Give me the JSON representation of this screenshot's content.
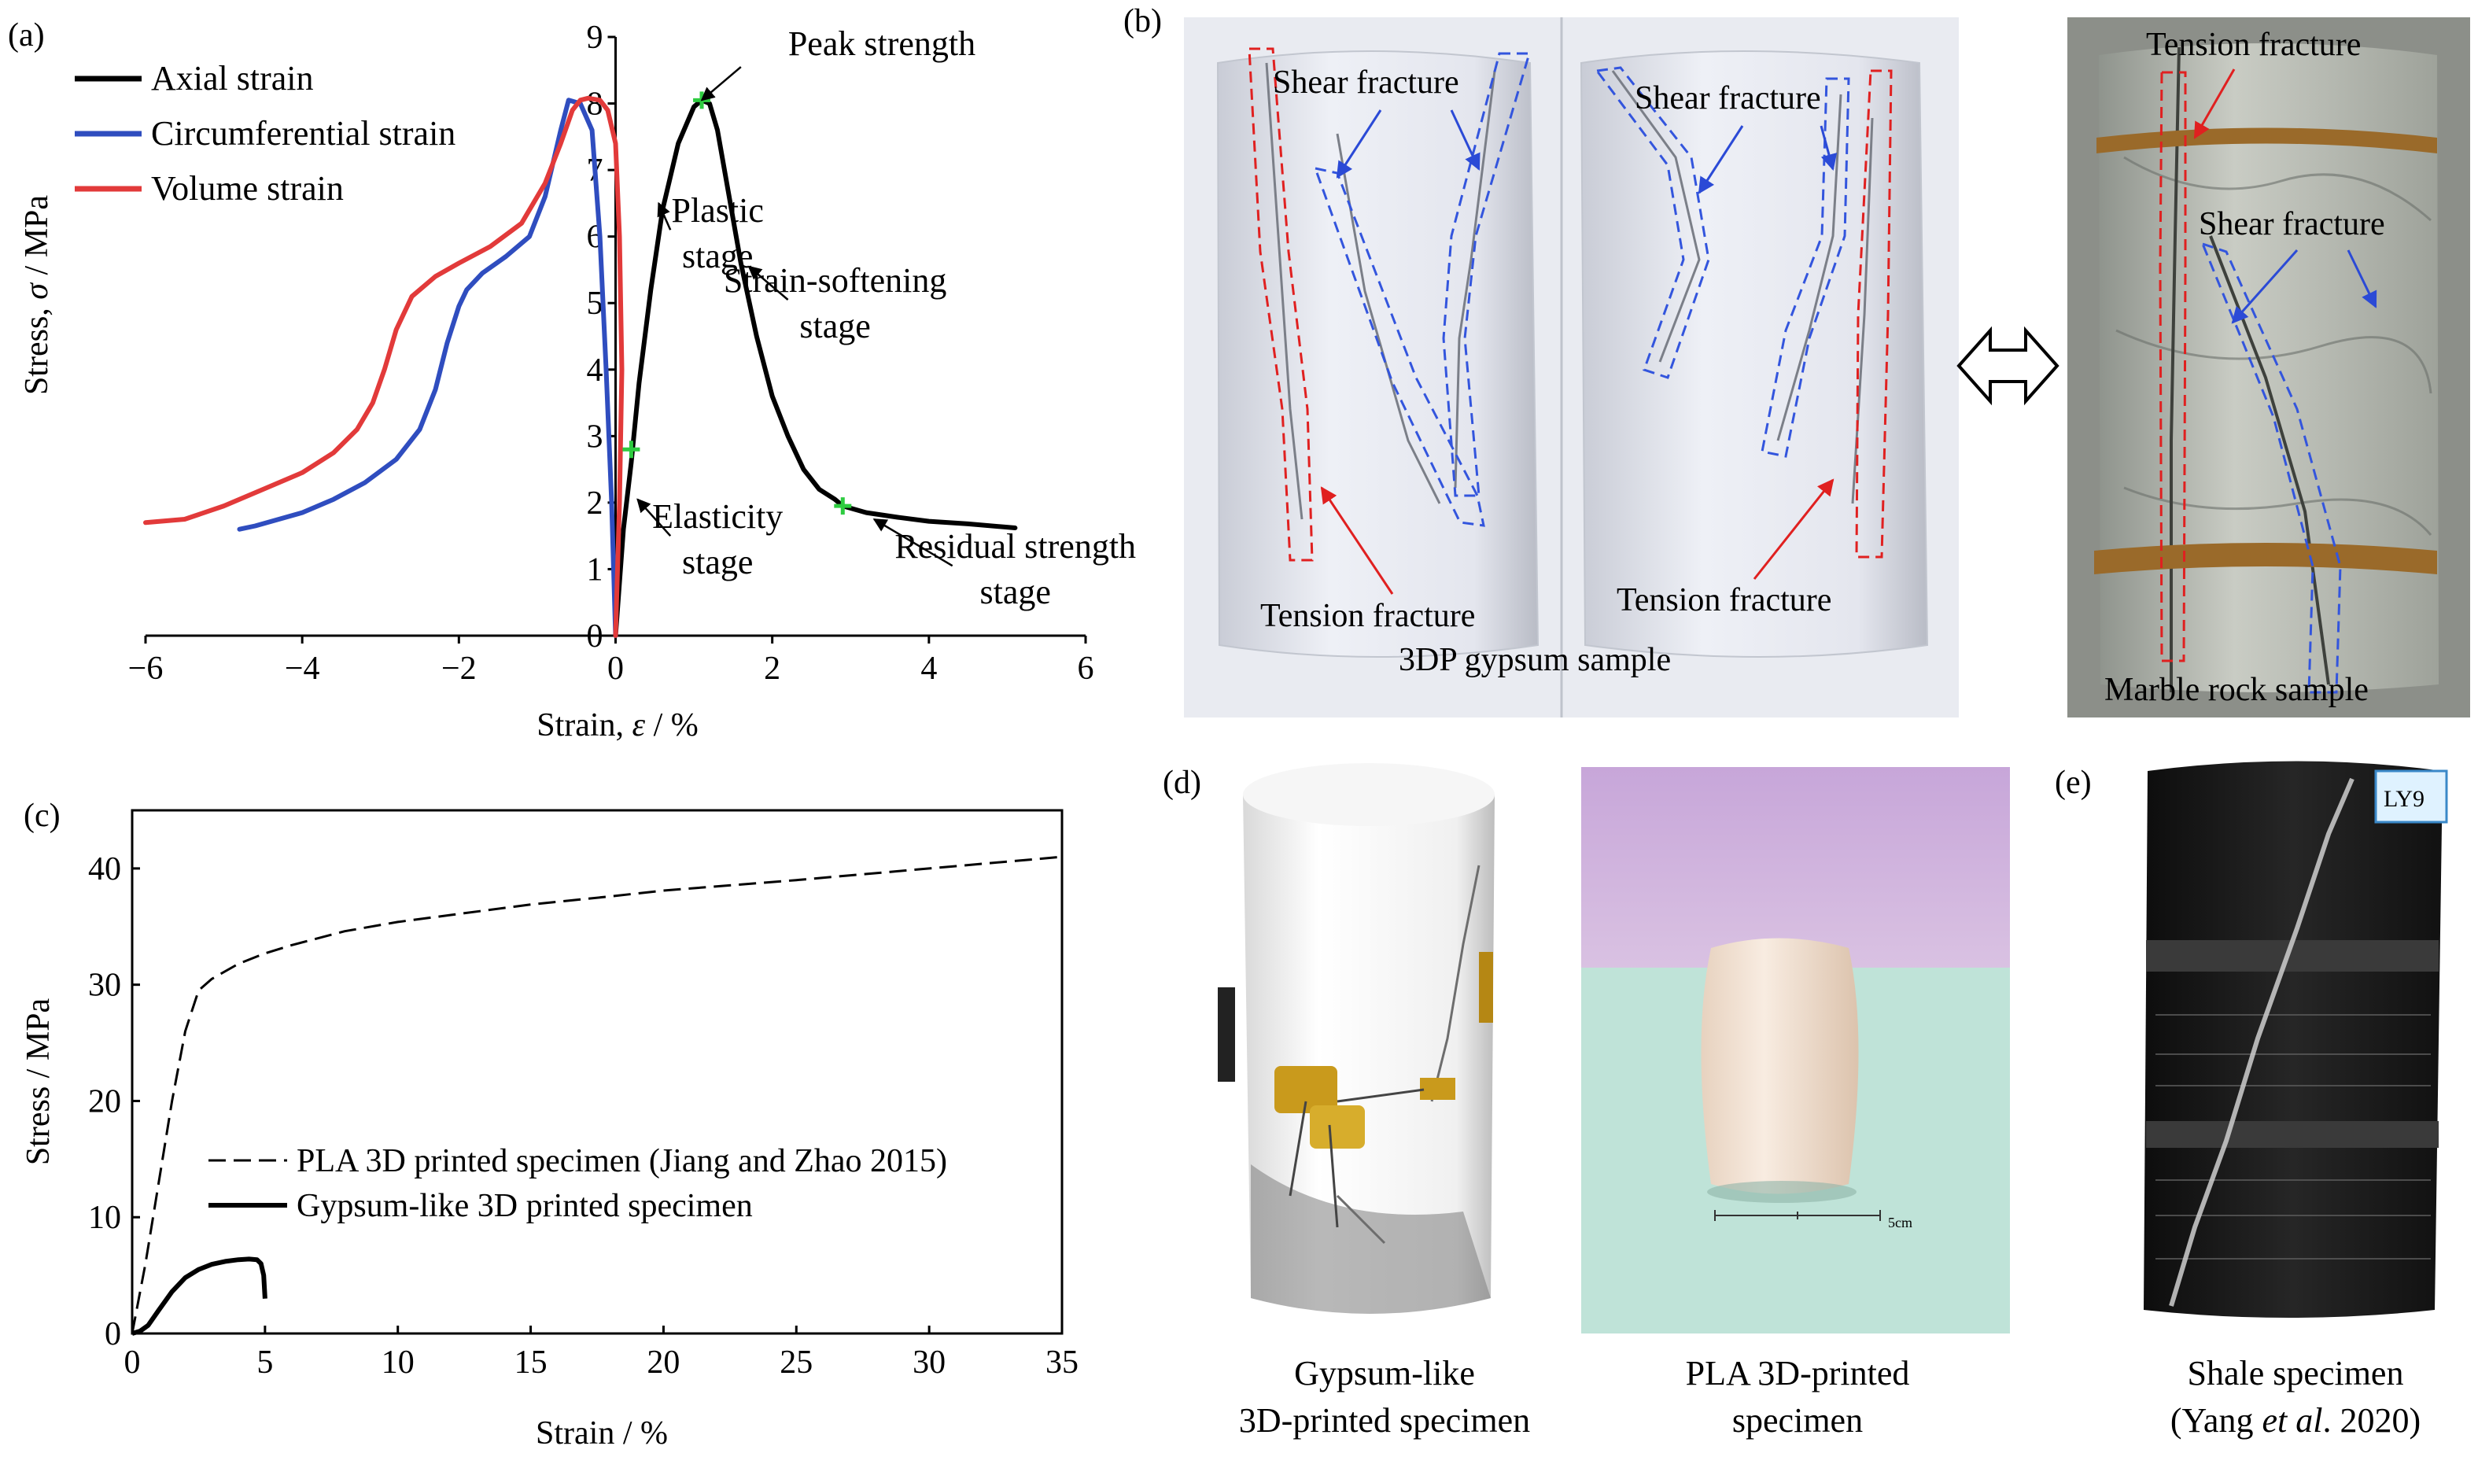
{
  "panels": {
    "a": {
      "label": "(a)"
    },
    "b": {
      "label": "(b)"
    },
    "c": {
      "label": "(c)"
    },
    "d": {
      "label": "(d)"
    },
    "e": {
      "label": "(e)"
    }
  },
  "colors": {
    "axial": "#000000",
    "circumferential": "#2f4dbf",
    "volume": "#e23a3a",
    "marker": "#2ecc40",
    "shear_outline": "#3355dd",
    "tension_outline": "#e02020",
    "gypsum_bg": "#e6e8ef",
    "marble_bg": "#b7bbb4",
    "pla_wall": "#c8a7d8",
    "pla_table": "#bfe3d8",
    "pla_body": "#f2e3d6",
    "shale_body": "#1a1a1a",
    "rubber_band": "#9a6a2a"
  },
  "photo_b": {
    "shear_fracture_1": "Shear fracture",
    "shear_fracture_2": "Shear fracture",
    "tension_fracture_1": "Tension fracture",
    "tension_fracture_2": "Tension fracture",
    "gypsum_caption": "3DP gypsum sample",
    "marble_tension": "Tension fracture",
    "marble_shear": "Shear fracture",
    "marble_caption": "Marble rock sample",
    "double_arrow_icon": "double-arrow-icon"
  },
  "photo_d": {
    "gypsum_caption_1": "Gypsum-like",
    "gypsum_caption_2": "3D-printed specimen",
    "pla_caption_1": "PLA 3D-printed",
    "pla_caption_2": "specimen",
    "scale_label": "5cm"
  },
  "photo_e": {
    "caption_1": "Shale specimen",
    "caption_2_pre": "(Yang ",
    "caption_2_it": "et al",
    "caption_2_post": ". 2020)",
    "sticker_text": "LY9"
  },
  "chart_data": [
    {
      "id": "a",
      "type": "line",
      "xlabel_pre": "Strain, ",
      "xlabel_sym": "ε",
      "xlabel_post": " / %",
      "ylabel_pre": "Stress, ",
      "ylabel_sym": "σ",
      "ylabel_post": " / MPa",
      "xlim": [
        -6,
        6
      ],
      "ylim": [
        0,
        9
      ],
      "xticks": [
        -6,
        -4,
        -2,
        0,
        2,
        4,
        6
      ],
      "xtick_labels": [
        "−6",
        "−4",
        "−2",
        "0",
        "2",
        "4",
        "6"
      ],
      "yticks": [
        0,
        1,
        2,
        3,
        4,
        5,
        6,
        7,
        8,
        9
      ],
      "ytick_labels": [
        "0",
        "1",
        "2",
        "3",
        "4",
        "5",
        "6",
        "7",
        "8",
        "9"
      ],
      "legend_position": "top-left",
      "series": [
        {
          "name": "Axial strain",
          "x": [
            0,
            0.05,
            0.1,
            0.2,
            0.3,
            0.45,
            0.6,
            0.8,
            1.0,
            1.1,
            1.2,
            1.3,
            1.45,
            1.6,
            1.8,
            2.0,
            2.2,
            2.4,
            2.6,
            2.8,
            2.9,
            3.2,
            3.6,
            4.0,
            4.5,
            5.1
          ],
          "y": [
            0,
            0.8,
            1.6,
            2.6,
            3.8,
            5.2,
            6.4,
            7.4,
            7.95,
            8.05,
            8.0,
            7.6,
            6.6,
            5.6,
            4.5,
            3.6,
            3.0,
            2.5,
            2.2,
            2.05,
            1.95,
            1.85,
            1.78,
            1.72,
            1.68,
            1.62
          ]
        },
        {
          "name": "Circumferential strain",
          "x": [
            -4.8,
            -4.6,
            -4.0,
            -3.6,
            -3.2,
            -2.8,
            -2.5,
            -2.3,
            -2.15,
            -2.0,
            -1.9,
            -1.7,
            -1.4,
            -1.1,
            -0.9,
            -0.7,
            -0.6,
            -0.45,
            -0.3,
            -0.2,
            -0.12,
            -0.05,
            0
          ],
          "y": [
            1.6,
            1.65,
            1.85,
            2.05,
            2.3,
            2.65,
            3.1,
            3.7,
            4.4,
            4.95,
            5.2,
            5.45,
            5.7,
            6.0,
            6.6,
            7.6,
            8.05,
            8.0,
            7.6,
            6.0,
            4.0,
            2.0,
            0
          ]
        },
        {
          "name": "Volume strain",
          "x": [
            -6.0,
            -5.5,
            -5.0,
            -4.5,
            -4.0,
            -3.6,
            -3.3,
            -3.1,
            -2.95,
            -2.8,
            -2.6,
            -2.3,
            -2.0,
            -1.6,
            -1.2,
            -0.9,
            -0.7,
            -0.55,
            -0.45,
            -0.35,
            -0.2,
            -0.1,
            0.0,
            0.05,
            0.08,
            0.05,
            0.0
          ],
          "y": [
            1.7,
            1.75,
            1.95,
            2.2,
            2.45,
            2.75,
            3.1,
            3.5,
            4.0,
            4.6,
            5.1,
            5.4,
            5.6,
            5.85,
            6.2,
            6.8,
            7.4,
            7.9,
            8.05,
            8.08,
            8.05,
            7.9,
            7.4,
            6.0,
            4.0,
            2.0,
            0
          ]
        }
      ],
      "markers": [
        {
          "x": 0.2,
          "y": 2.8
        },
        {
          "x": 1.1,
          "y": 8.05
        },
        {
          "x": 2.9,
          "y": 1.95
        }
      ],
      "annotations": [
        {
          "id": "peak",
          "text": "Peak strength",
          "ax": 1.6,
          "ay": 8.55,
          "px": 1.1,
          "py": 8.05
        },
        {
          "id": "plastic",
          "text1": "Plastic",
          "text2": "stage",
          "ax": 0.7,
          "ay": 6.1,
          "px": 0.55,
          "py": 6.5
        },
        {
          "id": "softening",
          "text1": "Strain-softening",
          "text2": "stage",
          "ax": 2.2,
          "ay": 5.05,
          "px": 1.7,
          "py": 5.55
        },
        {
          "id": "elastic",
          "text1": "Elasticity",
          "text2": "stage",
          "ax": 0.7,
          "ay": 1.5,
          "px": 0.28,
          "py": 2.05
        },
        {
          "id": "residual",
          "text1": "Residual strength",
          "text2": "stage",
          "ax": 4.3,
          "ay": 1.05,
          "px": 3.3,
          "py": 1.75
        }
      ]
    },
    {
      "id": "c",
      "type": "line",
      "xlabel": "Strain / %",
      "ylabel": "Stress / MPa",
      "xlim": [
        0,
        35
      ],
      "ylim": [
        0,
        45
      ],
      "xticks": [
        0,
        5,
        10,
        15,
        20,
        25,
        30,
        35
      ],
      "xtick_labels": [
        "0",
        "5",
        "10",
        "15",
        "20",
        "25",
        "30",
        "35"
      ],
      "yticks": [
        0,
        10,
        20,
        30,
        40
      ],
      "ytick_labels": [
        "0",
        "10",
        "20",
        "30",
        "40"
      ],
      "legend_position": "center-left",
      "series": [
        {
          "name": "PLA 3D printed specimen (Jiang and Zhao 2015)",
          "style": "dashed",
          "x": [
            0,
            0.5,
            1.0,
            1.5,
            2.0,
            2.5,
            3.0,
            4.0,
            5.0,
            6.0,
            8.0,
            10.0,
            12.0,
            15.0,
            18.0,
            20.0,
            25.0,
            30.0,
            35.0
          ],
          "y": [
            0,
            6,
            13,
            20,
            26,
            29.5,
            30.5,
            31.8,
            32.7,
            33.4,
            34.6,
            35.4,
            36.0,
            36.9,
            37.6,
            38.1,
            39.0,
            40.0,
            41.0
          ]
        },
        {
          "name": "Gypsum-like 3D printed specimen",
          "style": "solid",
          "x": [
            0,
            0.3,
            0.6,
            1.0,
            1.5,
            2.0,
            2.5,
            3.0,
            3.5,
            4.0,
            4.4,
            4.7,
            4.85,
            4.95,
            5.0
          ],
          "y": [
            0,
            0.2,
            0.7,
            2.0,
            3.6,
            4.8,
            5.5,
            5.95,
            6.2,
            6.35,
            6.4,
            6.35,
            6.0,
            5.0,
            3.0
          ]
        }
      ]
    }
  ]
}
